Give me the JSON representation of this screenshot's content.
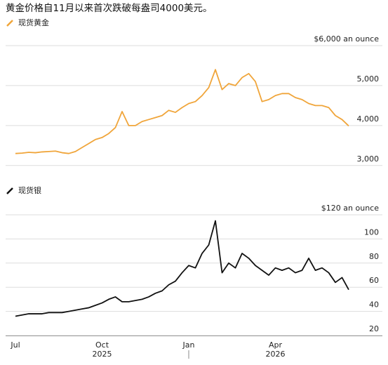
{
  "chart_data": [
    {
      "type": "line",
      "title": "黄金价格自11月以来首次跌破每盎司4000美元。",
      "series": [
        {
          "name": "现货黄金",
          "color": "#f0a53a",
          "values": [
            3300,
            3310,
            3330,
            3320,
            3340,
            3350,
            3360,
            3320,
            3300,
            3350,
            3450,
            3550,
            3650,
            3700,
            3800,
            3950,
            4350,
            4000,
            4000,
            4100,
            4150,
            4200,
            4250,
            4380,
            4330,
            4450,
            4550,
            4600,
            4750,
            4950,
            5400,
            4900,
            5050,
            5000,
            5200,
            5300,
            5100,
            4600,
            4650,
            4750,
            4800,
            4800,
            4700,
            4650,
            4550,
            4500,
            4500,
            4450,
            4250,
            4150,
            3990
          ]
        }
      ],
      "ylim": [
        2750,
        6000
      ],
      "yticks": [
        {
          "value": 3000,
          "label": "3,000"
        },
        {
          "value": 4000,
          "label": "4,000"
        },
        {
          "value": 5000,
          "label": "5,000"
        },
        {
          "value": 6000,
          "label": "$6,000 an ounce"
        }
      ],
      "grid": true
    },
    {
      "type": "line",
      "categories": [
        "Jul",
        null,
        null,
        null,
        null,
        null,
        null,
        null,
        null,
        null,
        null,
        null,
        null,
        "Oct",
        null,
        null,
        null,
        null,
        null,
        null,
        null,
        null,
        null,
        null,
        null,
        null,
        "Jan",
        null,
        null,
        null,
        null,
        null,
        null,
        null,
        null,
        null,
        null,
        null,
        null,
        "Apr",
        null,
        null,
        null,
        null,
        null,
        null,
        null,
        null,
        null,
        null,
        null
      ],
      "year_labels": [
        "2025",
        "2026"
      ],
      "series": [
        {
          "name": "现货银",
          "color": "#111111",
          "values": [
            36,
            37,
            38,
            38,
            38,
            39,
            39,
            39,
            40,
            41,
            42,
            43,
            45,
            47,
            50,
            52,
            48,
            48,
            49,
            50,
            52,
            55,
            57,
            62,
            65,
            72,
            78,
            76,
            88,
            95,
            115,
            72,
            80,
            76,
            88,
            84,
            78,
            74,
            70,
            76,
            74,
            76,
            72,
            74,
            84,
            74,
            76,
            72,
            64,
            68,
            58
          ]
        }
      ],
      "ylim": [
        20,
        120
      ],
      "yticks": [
        20,
        40,
        60,
        80,
        100,
        {
          "value": 120,
          "label": "$120 an ounce"
        }
      ],
      "grid": true
    }
  ]
}
